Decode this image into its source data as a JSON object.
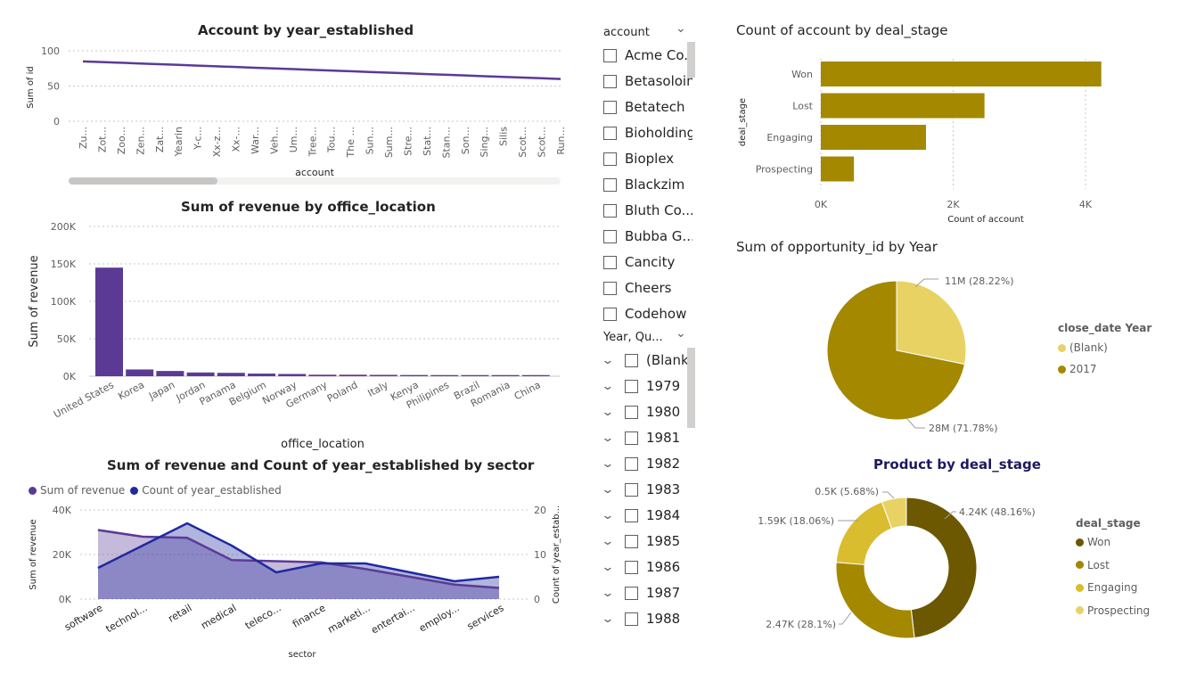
{
  "charts": {
    "year_line": {
      "title": "Account by year_established",
      "ylabel": "Sum of id",
      "xlabel": "account",
      "yticks": [
        "100",
        "50",
        "0"
      ],
      "xlabels": [
        "Zu...",
        "Zot...",
        "Zoo...",
        "Zen...",
        "Zat...",
        "Yearin",
        "Y-c...",
        "Xx-z...",
        "Xx-...",
        "War...",
        "Veh...",
        "Um...",
        "Tree...",
        "Tou...",
        "The ...",
        "Sun...",
        "Sum...",
        "Stre...",
        "Stat...",
        "Stan...",
        "Son...",
        "Sing...",
        "Silis",
        "Scot...",
        "Scot...",
        "Run..."
      ]
    },
    "revenue_bar": {
      "title": "Sum of revenue by office_location",
      "ylabel": "Sum of revenue",
      "xlabel": "office_location",
      "yticks": [
        "200K",
        "150K",
        "100K",
        "50K",
        "0K"
      ],
      "categories": [
        "United States",
        "Korea",
        "Japan",
        "Jordan",
        "Panama",
        "Belgium",
        "Norway",
        "Germany",
        "Poland",
        "Italy",
        "Kenya",
        "Philipines",
        "Brazil",
        "Romania",
        "China"
      ]
    },
    "sector_combo": {
      "title": "Sum of revenue and Count of year_established by sector",
      "legend": [
        "Sum of revenue",
        "Count of year_established"
      ],
      "ylabel_left": "Sum of revenue",
      "ylabel_right": "Count of year_estab...",
      "xlabel": "sector",
      "yticks_left": [
        "40K",
        "20K",
        "0K"
      ],
      "yticks_right": [
        "20",
        "10",
        "0"
      ],
      "categories": [
        "software",
        "technol...",
        "retail",
        "medical",
        "teleco...",
        "finance",
        "marketi...",
        "entertai...",
        "employ...",
        "services"
      ]
    },
    "deal_stage_bar": {
      "title": "Count of account by deal_stage",
      "ylabel": "deal_stage",
      "xlabel": "Count of account",
      "xticks": [
        "0K",
        "2K",
        "4K"
      ],
      "categories": [
        "Won",
        "Lost",
        "Engaging",
        "Prospecting"
      ]
    },
    "year_pie": {
      "title": "Sum of opportunity_id by Year",
      "legend_title": "close_date Year",
      "legend": [
        "(Blank)",
        "2017"
      ],
      "labels": [
        "11M (28.22%)",
        "28M (71.78%)"
      ]
    },
    "product_donut": {
      "title": "Product by deal_stage",
      "legend_title": "deal_stage",
      "legend": [
        "Won",
        "Lost",
        "Engaging",
        "Prospecting"
      ],
      "labels": [
        "4.24K (48.16%)",
        "2.47K (28.1%)",
        "1.59K (18.06%)",
        "0.5K (5.68%)"
      ]
    }
  },
  "slicers": {
    "account": {
      "header": "account",
      "items": [
        "Acme Co...",
        "Betasoloin",
        "Betatech",
        "Bioholding",
        "Bioplex",
        "Blackzim",
        "Bluth Co...",
        "Bubba G...",
        "Cancity",
        "Cheers",
        "Codehow"
      ]
    },
    "year": {
      "header": "Year, Qu...",
      "items": [
        "(Blank)",
        "1979",
        "1980",
        "1981",
        "1982",
        "1983",
        "1984",
        "1985",
        "1986",
        "1987",
        "1988"
      ]
    }
  },
  "chart_data": [
    {
      "type": "line",
      "title": "Account by year_established",
      "xlabel": "account",
      "ylabel": "Sum of id",
      "x": [
        "Zu...",
        "Zot...",
        "Zoo...",
        "Zen...",
        "Zat...",
        "Yearin",
        "Y-c...",
        "Xx-z...",
        "Xx-...",
        "War...",
        "Veh...",
        "Um...",
        "Tree...",
        "Tou...",
        "The ...",
        "Sun...",
        "Sum...",
        "Stre...",
        "Stat...",
        "Stan...",
        "Son...",
        "Sing...",
        "Silis",
        "Scot...",
        "Scot...",
        "Run..."
      ],
      "series": [
        {
          "values": [
            85,
            84,
            83,
            82,
            81,
            80,
            79,
            78,
            77,
            76,
            75,
            74,
            73,
            72,
            71,
            70,
            69,
            68,
            67,
            66,
            65,
            64,
            63,
            62,
            61,
            60
          ]
        }
      ],
      "ylim": [
        0,
        100
      ],
      "grid": true,
      "color": "#5b3a96"
    },
    {
      "type": "bar",
      "title": "Sum of revenue by office_location",
      "xlabel": "office_location",
      "ylabel": "Sum of revenue",
      "categories": [
        "United States",
        "Korea",
        "Japan",
        "Jordan",
        "Panama",
        "Belgium",
        "Norway",
        "Germany",
        "Poland",
        "Italy",
        "Kenya",
        "Philipines",
        "Brazil",
        "Romania",
        "China"
      ],
      "values": [
        145000,
        9000,
        7000,
        5000,
        4500,
        3500,
        3000,
        2000,
        2000,
        1800,
        1600,
        1500,
        1500,
        1500,
        1500
      ],
      "ylim": [
        0,
        200000
      ],
      "grid": true,
      "color": "#5b3a96"
    },
    {
      "type": "area",
      "title": "Sum of revenue and Count of year_established by sector",
      "xlabel": "sector",
      "categories": [
        "software",
        "technol...",
        "retail",
        "medical",
        "teleco...",
        "finance",
        "marketi...",
        "entertai...",
        "employ...",
        "services"
      ],
      "series": [
        {
          "name": "Sum of revenue",
          "axis": "left",
          "values": [
            31000,
            28000,
            27500,
            17500,
            17000,
            16500,
            13500,
            10000,
            6500,
            5000
          ],
          "color": "#5b3a96"
        },
        {
          "name": "Count of year_established",
          "axis": "right",
          "values": [
            7,
            12,
            17,
            12,
            6,
            8,
            8,
            6,
            4,
            5
          ],
          "color": "#1f2aa0"
        }
      ],
      "ylim_left": [
        0,
        40000
      ],
      "ylim_right": [
        0,
        20
      ],
      "legend": "top-left",
      "grid": true
    },
    {
      "type": "bar",
      "orientation": "horizontal",
      "title": "Count of account by deal_stage",
      "xlabel": "Count of account",
      "ylabel": "deal_stage",
      "categories": [
        "Won",
        "Lost",
        "Engaging",
        "Prospecting"
      ],
      "values": [
        4238,
        2473,
        1589,
        500
      ],
      "xlim": [
        0,
        4500
      ],
      "grid": true,
      "color": "#a38800"
    },
    {
      "type": "pie",
      "title": "Sum of opportunity_id by Year",
      "categories": [
        "(Blank)",
        "2017"
      ],
      "values": [
        11,
        28
      ],
      "percentages": [
        28.22,
        71.78
      ],
      "colors": [
        "#e8d264",
        "#a38800"
      ],
      "legend": "right"
    },
    {
      "type": "pie",
      "subtype": "donut",
      "title": "Product by deal_stage",
      "categories": [
        "Won",
        "Lost",
        "Engaging",
        "Prospecting"
      ],
      "values": [
        4240,
        2470,
        1590,
        500
      ],
      "percentages": [
        48.16,
        28.1,
        18.06,
        5.68
      ],
      "colors": [
        "#6b5800",
        "#a38800",
        "#d9bd2f",
        "#e8d264"
      ],
      "legend": "right"
    }
  ]
}
